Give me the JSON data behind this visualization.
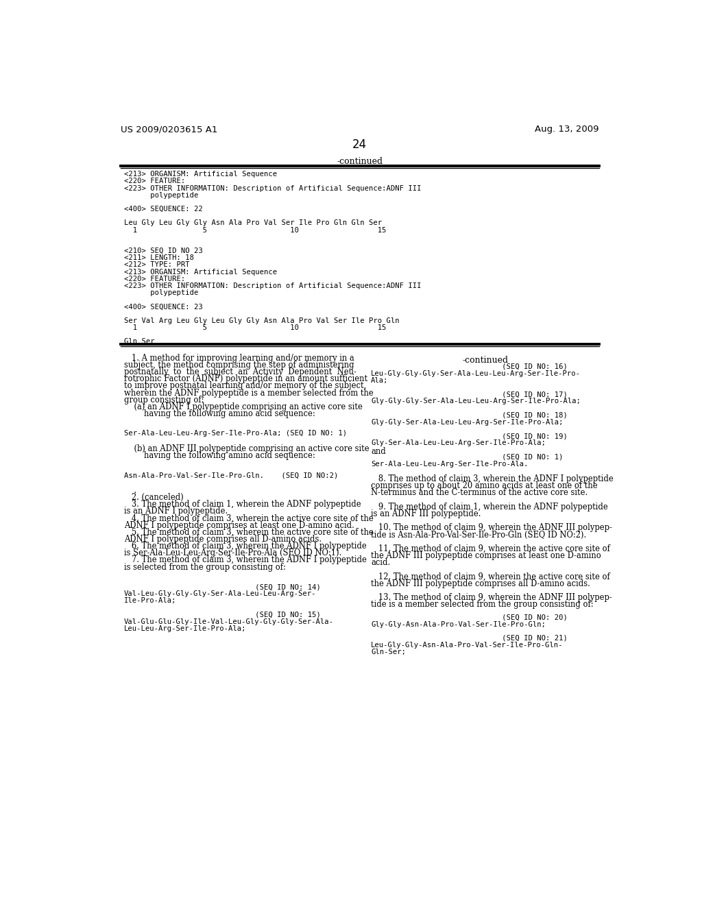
{
  "bg_color": "#ffffff",
  "text_color": "#000000",
  "header_left": "US 2009/0203615 A1",
  "header_right": "Aug. 13, 2009",
  "page_number": "24",
  "continued_label": "-continued",
  "top_section_mono": [
    "<213> ORGANISM: Artificial Sequence",
    "<220> FEATURE:",
    "<223> OTHER INFORMATION: Description of Artificial Sequence:ADNF III",
    "      polypeptide",
    "",
    "<400> SEQUENCE: 22",
    "",
    "Leu Gly Leu Gly Gly Asn Ala Pro Val Ser Ile Pro Gln Gln Ser",
    "  1               5                   10                  15",
    "",
    "",
    "<210> SEQ ID NO 23",
    "<211> LENGTH: 18",
    "<212> TYPE: PRT",
    "<213> ORGANISM: Artificial Sequence",
    "<220> FEATURE:",
    "<223> OTHER INFORMATION: Description of Artificial Sequence:ADNF III",
    "      polypeptide",
    "",
    "<400> SEQUENCE: 23",
    "",
    "Ser Val Arg Leu Gly Leu Gly Gly Asn Ala Pro Val Ser Ile Pro Gln",
    "  1               5                   10                  15",
    "",
    "Gln Ser"
  ],
  "left_col_text": [
    {
      "text": "   1. A method for improving learning and/or memory in a",
      "style": "body"
    },
    {
      "text": "subject, the method comprising the step of administering",
      "style": "body"
    },
    {
      "text": "postnatally  to  the  subject  an  Activity  Dependent  Neu-",
      "style": "body"
    },
    {
      "text": "rotrophic Factor (ADNF) polypeptide in an amount sufficient",
      "style": "body"
    },
    {
      "text": "to improve postnatal learning and/or memory of the subject,",
      "style": "body"
    },
    {
      "text": "wherein the ADNF polypeptide is a member selected from the",
      "style": "body"
    },
    {
      "text": "group consisting of:",
      "style": "body"
    },
    {
      "text": "    (a) an ADNF I polypeptide comprising an active core site",
      "style": "body"
    },
    {
      "text": "        having the following amino acid sequence:",
      "style": "body"
    },
    {
      "text": "",
      "style": "body"
    },
    {
      "text": "",
      "style": "body"
    },
    {
      "text": "Ser-Ala-Leu-Leu-Arg-Ser-Ile-Pro-Ala; (SEQ ID NO: 1)",
      "style": "mono"
    },
    {
      "text": "",
      "style": "body"
    },
    {
      "text": "    (b) an ADNF III polypeptide comprising an active core site",
      "style": "body"
    },
    {
      "text": "        having the following amino acid sequence:",
      "style": "body"
    },
    {
      "text": "",
      "style": "body"
    },
    {
      "text": "",
      "style": "body"
    },
    {
      "text": "Asn-Ala-Pro-Val-Ser-Ile-Pro-Gln.    (SEQ ID NO:2)",
      "style": "mono"
    },
    {
      "text": "",
      "style": "body"
    },
    {
      "text": "    .",
      "style": "body"
    },
    {
      "text": "   2. (canceled)",
      "style": "body"
    },
    {
      "text": "   3. The method of claim 1, wherein the ADNF polypeptide",
      "style": "body"
    },
    {
      "text": "is an ADNF I polypeptide.",
      "style": "body"
    },
    {
      "text": "   4. The method of claim 3, wherein the active core site of the",
      "style": "body"
    },
    {
      "text": "ADNF I polypeptide comprises at least one D-amino acid.",
      "style": "body"
    },
    {
      "text": "   5. The method of claim 3, wherein the active core site of the",
      "style": "body"
    },
    {
      "text": "ADNF I polypeptide comprises all D-amino acids.",
      "style": "body"
    },
    {
      "text": "   6. The method of claim 3, wherein the ADNF I polypeptide",
      "style": "body"
    },
    {
      "text": "is Ser-Ala-Leu-Leu-Arg-Ser-Ile-Pro-Ala (SEQ ID NO:1).",
      "style": "body"
    },
    {
      "text": "   7. The method of claim 3, wherein the ADNF I polypeptide",
      "style": "body"
    },
    {
      "text": "is selected from the group consisting of:",
      "style": "body"
    },
    {
      "text": "",
      "style": "body"
    },
    {
      "text": "",
      "style": "body"
    },
    {
      "text": "                              (SEQ ID NO: 14)",
      "style": "mono"
    },
    {
      "text": "Val-Leu-Gly-Gly-Gly-Ser-Ala-Leu-Leu-Arg-Ser-",
      "style": "mono"
    },
    {
      "text": "Ile-Pro-Ala;",
      "style": "mono"
    },
    {
      "text": "",
      "style": "body"
    },
    {
      "text": "                              (SEQ ID NO: 15)",
      "style": "mono"
    },
    {
      "text": "Val-Glu-Glu-Gly-Ile-Val-Leu-Gly-Gly-Gly-Ser-Ala-",
      "style": "mono"
    },
    {
      "text": "Leu-Leu-Arg-Ser-Ile-Pro-Ala;",
      "style": "mono"
    }
  ],
  "right_col_continued": "-continued",
  "right_col_text": [
    {
      "text": "                              (SEQ ID NO: 16)",
      "style": "mono"
    },
    {
      "text": "Leu-Gly-Gly-Gly-Ser-Ala-Leu-Leu-Arg-Ser-Ile-Pro-",
      "style": "mono"
    },
    {
      "text": "Ala;",
      "style": "mono"
    },
    {
      "text": "",
      "style": "body"
    },
    {
      "text": "                              (SEQ ID NO: 17)",
      "style": "mono"
    },
    {
      "text": "Gly-Gly-Gly-Ser-Ala-Leu-Leu-Arg-Ser-Ile-Pro-Ala;",
      "style": "mono"
    },
    {
      "text": "",
      "style": "body"
    },
    {
      "text": "                              (SEQ ID NO: 18)",
      "style": "mono"
    },
    {
      "text": "Gly-Gly-Ser-Ala-Leu-Leu-Arg-Ser-Ile-Pro-Ala;",
      "style": "mono"
    },
    {
      "text": "",
      "style": "body"
    },
    {
      "text": "                              (SEQ ID NO: 19)",
      "style": "mono"
    },
    {
      "text": "Gly-Ser-Ala-Leu-Leu-Arg-Ser-Ile-Pro-Ala;",
      "style": "mono"
    },
    {
      "text": "and",
      "style": "body"
    },
    {
      "text": "                              (SEQ ID NO: 1)",
      "style": "mono"
    },
    {
      "text": "Ser-Ala-Leu-Leu-Arg-Ser-Ile-Pro-Ala.",
      "style": "mono"
    },
    {
      "text": "",
      "style": "body"
    },
    {
      "text": "   8. The method of claim 3, wherein the ADNF I polypeptide",
      "style": "body"
    },
    {
      "text": "comprises up to about 20 amino acids at least one of the",
      "style": "body"
    },
    {
      "text": "N-terminus and the C-terminus of the active core site.",
      "style": "body"
    },
    {
      "text": "",
      "style": "body"
    },
    {
      "text": "   9. The method of claim 1, wherein the ADNF polypeptide",
      "style": "body"
    },
    {
      "text": "is an ADNF III polypeptide.",
      "style": "body"
    },
    {
      "text": "",
      "style": "body"
    },
    {
      "text": "   10. The method of claim 9, wherein the ADNF III polypep-",
      "style": "body"
    },
    {
      "text": "tide is Asn-Ala-Pro-Val-Ser-Ile-Pro-Gln (SEQ ID NO:2).",
      "style": "body"
    },
    {
      "text": "",
      "style": "body"
    },
    {
      "text": "   11. The method of claim 9, wherein the active core site of",
      "style": "body"
    },
    {
      "text": "the ADNF III polypeptide comprises at least one D-amino",
      "style": "body"
    },
    {
      "text": "acid.",
      "style": "body"
    },
    {
      "text": "",
      "style": "body"
    },
    {
      "text": "   12. The method of claim 9, wherein the active core site of",
      "style": "body"
    },
    {
      "text": "the ADNF III polypeptide comprises all D-amino acids.",
      "style": "body"
    },
    {
      "text": "",
      "style": "body"
    },
    {
      "text": "   13. The method of claim 9, wherein the ADNF III polypep-",
      "style": "body"
    },
    {
      "text": "tide is a member selected from the group consisting of:",
      "style": "body"
    },
    {
      "text": "",
      "style": "body"
    },
    {
      "text": "                              (SEQ ID NO: 20)",
      "style": "mono"
    },
    {
      "text": "Gly-Gly-Asn-Ala-Pro-Val-Ser-Ile-Pro-Gln;",
      "style": "mono"
    },
    {
      "text": "",
      "style": "body"
    },
    {
      "text": "                              (SEQ ID NO: 21)",
      "style": "mono"
    },
    {
      "text": "Leu-Gly-Gly-Asn-Ala-Pro-Val-Ser-Ile-Pro-Gln-",
      "style": "mono"
    },
    {
      "text": "Gln-Ser;",
      "style": "mono"
    }
  ]
}
